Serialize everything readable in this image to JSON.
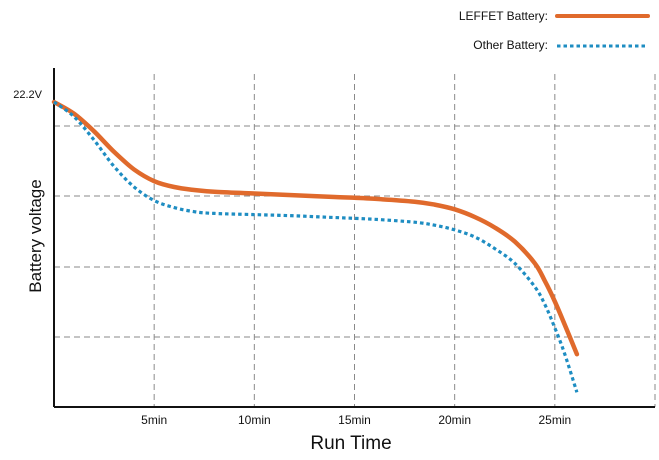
{
  "chart_data": {
    "type": "line",
    "title": "",
    "xlabel": "Run Time",
    "ylabel": "Battery voltage",
    "x_ticks": [
      {
        "value": 5,
        "label": "5min"
      },
      {
        "value": 10,
        "label": "10min"
      },
      {
        "value": 15,
        "label": "15min"
      },
      {
        "value": 20,
        "label": "20min"
      },
      {
        "value": 25,
        "label": "25min"
      }
    ],
    "y_ticks": [
      {
        "value": 22.2,
        "label": "22.2V"
      }
    ],
    "xlim": [
      0,
      30
    ],
    "ylim": [
      17.0,
      22.2
    ],
    "grid": true,
    "legend_position": "top-right",
    "series": [
      {
        "name": "LEFFET Battery:",
        "color": "#E06A2C",
        "style": "solid",
        "x": [
          0,
          1,
          2,
          3,
          4,
          5,
          6,
          7,
          8,
          10,
          12,
          14,
          16,
          18,
          19,
          20,
          21,
          22,
          23,
          24,
          24.5,
          25,
          25.5,
          26.1
        ],
        "y": [
          22.2,
          22.0,
          21.7,
          21.35,
          21.05,
          20.85,
          20.75,
          20.7,
          20.67,
          20.64,
          20.61,
          20.58,
          20.55,
          20.5,
          20.45,
          20.37,
          20.24,
          20.06,
          19.82,
          19.45,
          19.15,
          18.8,
          18.4,
          17.9
        ]
      },
      {
        "name": "Other Battery:",
        "color": "#1E8DC2",
        "style": "dotted",
        "x": [
          0,
          1,
          2,
          3,
          4,
          5,
          6,
          7,
          8,
          10,
          12,
          14,
          16,
          18,
          19,
          20,
          21,
          22,
          23,
          24,
          24.5,
          25,
          25.5,
          26.1
        ],
        "y": [
          22.2,
          21.95,
          21.55,
          21.1,
          20.75,
          20.52,
          20.4,
          20.33,
          20.3,
          20.28,
          20.26,
          20.23,
          20.2,
          20.15,
          20.1,
          20.02,
          19.9,
          19.7,
          19.45,
          19.05,
          18.75,
          18.35,
          17.9,
          17.25
        ]
      }
    ]
  }
}
